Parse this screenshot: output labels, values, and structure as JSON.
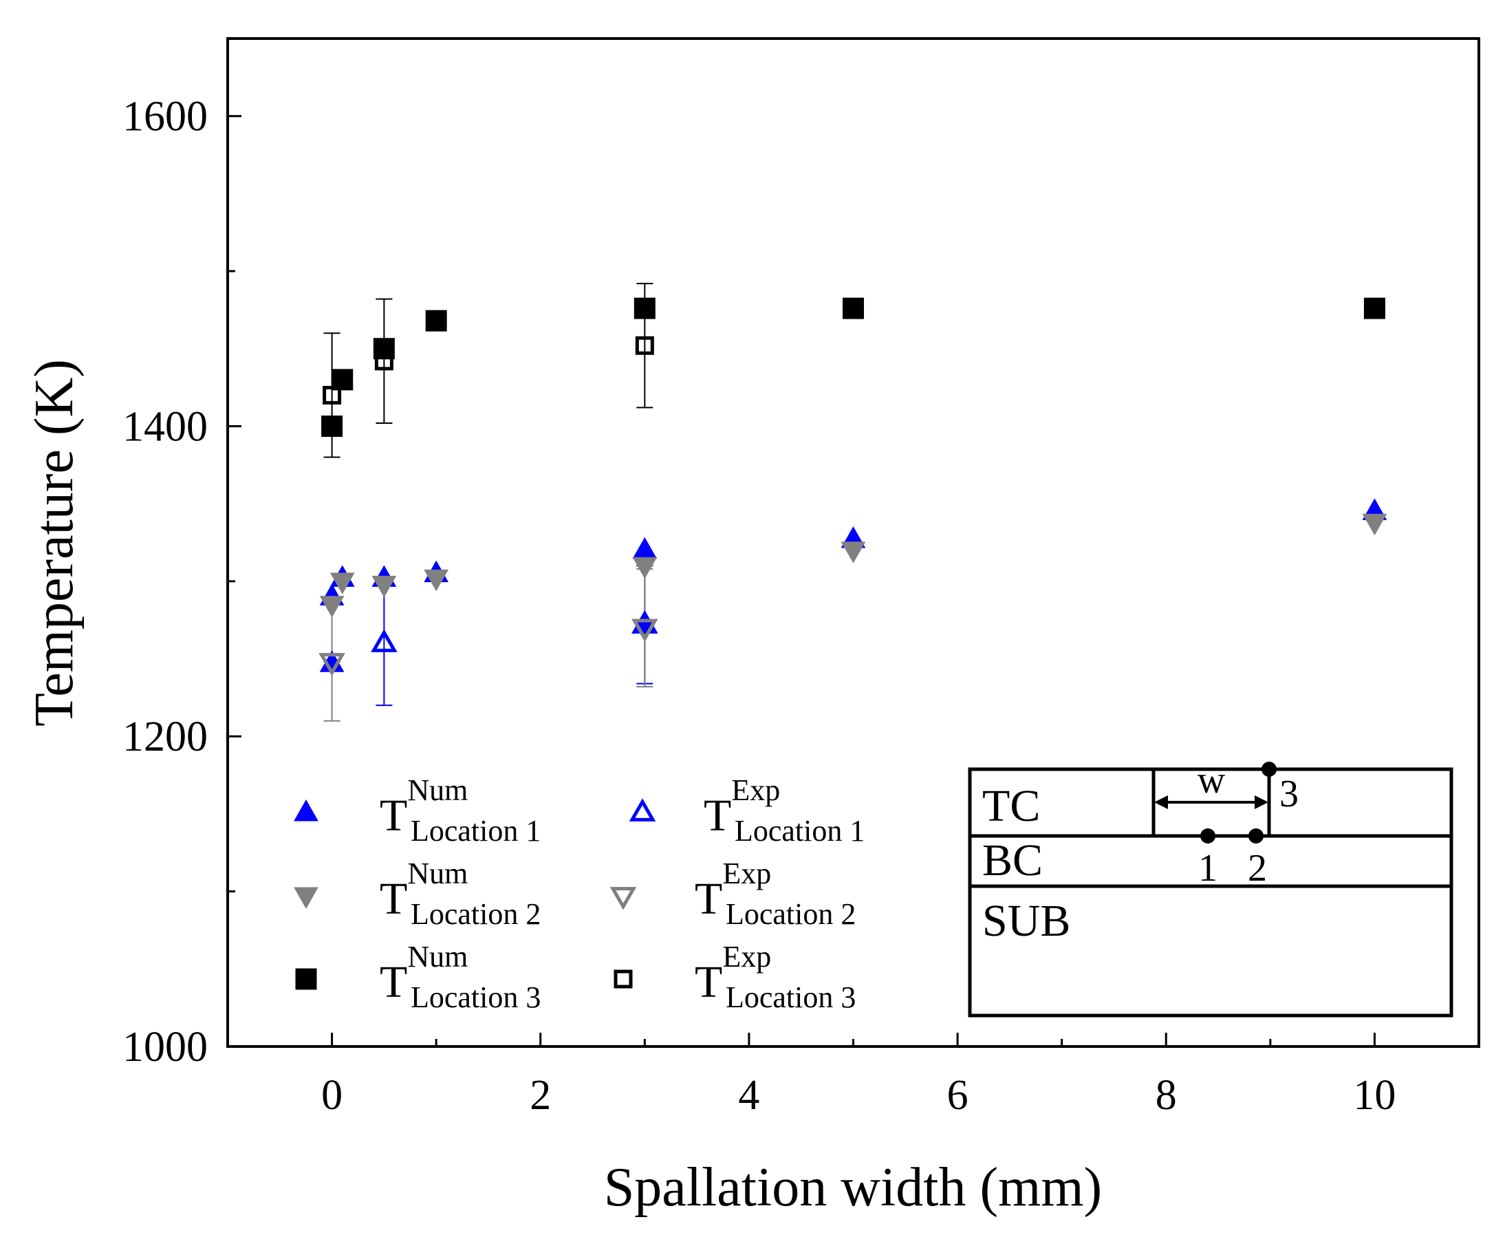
{
  "chart_data": {
    "type": "scatter",
    "title": "",
    "xlabel": "Spallation width (mm)",
    "ylabel": "Temperature (K)",
    "xlim": [
      -1,
      11
    ],
    "ylim": [
      1000,
      1650
    ],
    "xticks": [
      0,
      2,
      4,
      6,
      8,
      10
    ],
    "yticks": [
      1000,
      1200,
      1400,
      1600
    ],
    "xtick_labels": [
      "0",
      "2",
      "4",
      "6",
      "8",
      "10"
    ],
    "ytick_labels": [
      "1000",
      "1200",
      "1400",
      "1600"
    ],
    "grid": false,
    "legend_position": "lower-left",
    "series": [
      {
        "key": "num1",
        "symbol": "T",
        "sup": "Num",
        "sub": "Location 1",
        "marker": "triangle-up",
        "filled": true,
        "color": "#0000ff",
        "points": [
          {
            "x": 0,
            "y": 1247
          },
          {
            "x": 0,
            "y": 1290
          },
          {
            "x": 0.1,
            "y": 1302
          },
          {
            "x": 0.5,
            "y": 1302
          },
          {
            "x": 1,
            "y": 1305
          },
          {
            "x": 3,
            "y": 1273
          },
          {
            "x": 3,
            "y": 1320
          },
          {
            "x": 5,
            "y": 1327
          },
          {
            "x": 10,
            "y": 1345
          }
        ]
      },
      {
        "key": "exp1",
        "symbol": "T",
        "sup": "Exp",
        "sub": "Location 1",
        "marker": "triangle-up",
        "filled": false,
        "color": "#0000ff",
        "points": [
          {
            "x": 0.5,
            "y": 1260,
            "err": 40
          },
          {
            "x": 3,
            "y": 1272,
            "err": 38
          }
        ]
      },
      {
        "key": "num2",
        "symbol": "T",
        "sup": "Num",
        "sub": "Location 2",
        "marker": "triangle-down",
        "filled": true,
        "color": "#808080",
        "points": [
          {
            "x": 0,
            "y": 1285
          },
          {
            "x": 0.1,
            "y": 1300
          },
          {
            "x": 0.5,
            "y": 1298
          },
          {
            "x": 1,
            "y": 1302
          },
          {
            "x": 3,
            "y": 1310
          },
          {
            "x": 5,
            "y": 1320
          },
          {
            "x": 10,
            "y": 1338
          }
        ]
      },
      {
        "key": "exp2",
        "symbol": "T",
        "sup": "Exp",
        "sub": "Location 2",
        "marker": "triangle-down",
        "filled": false,
        "color": "#808080",
        "points": [
          {
            "x": 0,
            "y": 1248,
            "err": 38
          },
          {
            "x": 3,
            "y": 1270,
            "err": 38
          }
        ]
      },
      {
        "key": "num3",
        "symbol": "T",
        "sup": "Num",
        "sub": "Location 3",
        "marker": "square",
        "filled": true,
        "color": "#000000",
        "points": [
          {
            "x": 0,
            "y": 1400
          },
          {
            "x": 0.1,
            "y": 1430
          },
          {
            "x": 0.5,
            "y": 1450
          },
          {
            "x": 1,
            "y": 1468
          },
          {
            "x": 3,
            "y": 1476
          },
          {
            "x": 5,
            "y": 1476
          },
          {
            "x": 10,
            "y": 1476
          }
        ]
      },
      {
        "key": "exp3",
        "symbol": "T",
        "sup": "Exp",
        "sub": "Location 3",
        "marker": "square",
        "filled": false,
        "color": "#000000",
        "points": [
          {
            "x": 0,
            "y": 1420,
            "err": 40
          },
          {
            "x": 0.5,
            "y": 1442,
            "err": 40
          },
          {
            "x": 3,
            "y": 1452,
            "err": 40
          }
        ]
      }
    ],
    "inset": {
      "layers": [
        "TC",
        "BC",
        "SUB"
      ],
      "width_label": "w",
      "points": [
        "1",
        "2",
        "3"
      ]
    }
  }
}
